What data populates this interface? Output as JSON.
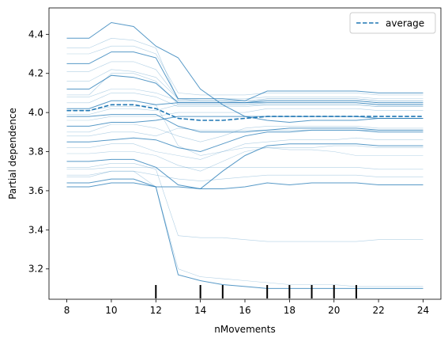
{
  "chart_data": {
    "type": "line",
    "title": "",
    "xlabel": "nMovements",
    "ylabel": "Partial dependence",
    "xlim": [
      7.2,
      24.8
    ],
    "ylim": [
      3.045,
      4.535
    ],
    "xticks": [
      8,
      10,
      12,
      14,
      16,
      18,
      20,
      22,
      24
    ],
    "yticks": [
      3.2,
      3.4,
      3.6,
      3.8,
      4.0,
      4.2,
      4.4
    ],
    "xtick_labels": [
      "8",
      "10",
      "12",
      "14",
      "16",
      "18",
      "20",
      "22",
      "24"
    ],
    "ytick_labels": [
      "3.2",
      "3.4",
      "3.6",
      "3.8",
      "4.0",
      "4.2",
      "4.4"
    ],
    "grid": false,
    "legend": {
      "position": "upper right",
      "entries": [
        {
          "label": "average",
          "style": "dashed"
        }
      ]
    },
    "color": "#1f77b4",
    "x": [
      8,
      9,
      10,
      11,
      12,
      13,
      14,
      15,
      16,
      17,
      18,
      19,
      20,
      21,
      22,
      23,
      24
    ],
    "rug_x": [
      12,
      14,
      15,
      17,
      18,
      19,
      20,
      21
    ],
    "series": [
      {
        "role": "individual",
        "values": [
          4.38,
          4.38,
          4.46,
          4.44,
          4.34,
          4.28,
          4.12,
          4.04,
          3.98,
          3.96,
          3.95,
          3.96,
          3.96,
          3.96,
          3.97,
          3.97,
          3.97
        ]
      },
      {
        "role": "individual",
        "values": [
          4.33,
          4.33,
          4.38,
          4.37,
          4.33,
          4.06,
          4.06,
          4.06,
          4.05,
          4.07,
          4.07,
          4.07,
          4.07,
          4.07,
          4.06,
          4.06,
          4.06
        ]
      },
      {
        "role": "individual",
        "values": [
          4.3,
          4.3,
          4.34,
          4.34,
          4.3,
          4.1,
          4.09,
          4.09,
          4.09,
          4.1,
          4.1,
          4.1,
          4.1,
          4.1,
          4.09,
          4.09,
          4.09
        ]
      },
      {
        "role": "individual",
        "values": [
          4.25,
          4.25,
          4.31,
          4.31,
          4.28,
          4.07,
          4.07,
          4.07,
          4.06,
          4.11,
          4.11,
          4.11,
          4.11,
          4.11,
          4.1,
          4.1,
          4.1
        ]
      },
      {
        "role": "individual",
        "values": [
          4.21,
          4.21,
          4.26,
          4.26,
          4.22,
          4.07,
          4.07,
          4.07,
          4.07,
          4.08,
          4.08,
          4.08,
          4.08,
          4.08,
          4.07,
          4.07,
          4.07
        ]
      },
      {
        "role": "individual",
        "values": [
          4.16,
          4.16,
          4.22,
          4.21,
          4.18,
          4.07,
          4.06,
          4.06,
          4.06,
          4.07,
          4.07,
          4.07,
          4.07,
          4.07,
          4.06,
          4.06,
          4.06
        ]
      },
      {
        "role": "individual",
        "values": [
          4.12,
          4.12,
          4.19,
          4.18,
          4.15,
          4.05,
          4.05,
          4.05,
          4.05,
          4.06,
          4.06,
          4.06,
          4.06,
          4.06,
          4.05,
          4.05,
          4.05
        ]
      },
      {
        "role": "individual",
        "values": [
          4.08,
          4.08,
          4.12,
          4.12,
          4.1,
          4.06,
          4.06,
          4.06,
          4.06,
          4.06,
          4.06,
          4.06,
          4.06,
          4.06,
          4.05,
          4.05,
          4.05
        ]
      },
      {
        "role": "individual",
        "values": [
          4.05,
          4.05,
          4.1,
          4.1,
          4.08,
          4.03,
          4.03,
          4.03,
          4.03,
          4.04,
          4.04,
          4.04,
          4.04,
          4.04,
          4.03,
          4.03,
          4.03
        ]
      },
      {
        "role": "individual",
        "values": [
          4.02,
          4.02,
          4.06,
          4.06,
          4.04,
          4.05,
          4.05,
          4.05,
          4.05,
          4.05,
          4.05,
          4.05,
          4.05,
          4.05,
          4.04,
          4.04,
          4.04
        ]
      },
      {
        "role": "individual",
        "values": [
          3.99,
          3.99,
          4.02,
          4.02,
          4.01,
          4.04,
          4.04,
          4.04,
          4.04,
          4.04,
          4.04,
          4.04,
          4.04,
          4.04,
          4.03,
          4.03,
          4.03
        ]
      },
      {
        "role": "individual",
        "values": [
          3.96,
          3.96,
          3.98,
          3.98,
          3.98,
          4.0,
          4.0,
          4.0,
          4.0,
          4.02,
          4.02,
          4.02,
          4.02,
          4.02,
          4.01,
          4.01,
          4.01
        ]
      },
      {
        "role": "individual",
        "values": [
          3.93,
          3.93,
          3.95,
          3.95,
          3.96,
          3.98,
          3.98,
          3.98,
          3.98,
          3.98,
          3.98,
          3.98,
          3.98,
          3.98,
          3.97,
          3.97,
          3.97
        ]
      },
      {
        "role": "individual",
        "values": [
          3.9,
          3.9,
          3.94,
          3.94,
          3.92,
          3.88,
          3.85,
          3.88,
          3.92,
          3.93,
          3.93,
          3.93,
          3.93,
          3.93,
          3.92,
          3.92,
          3.92
        ]
      },
      {
        "role": "individual",
        "values": [
          3.88,
          3.88,
          3.9,
          3.9,
          3.88,
          3.92,
          3.91,
          3.91,
          3.91,
          3.91,
          3.91,
          3.91,
          3.91,
          3.91,
          3.91,
          3.91,
          3.91
        ]
      },
      {
        "role": "individual",
        "values": [
          3.85,
          3.85,
          3.86,
          3.87,
          3.86,
          3.82,
          3.8,
          3.84,
          3.88,
          3.9,
          3.9,
          3.91,
          3.91,
          3.91,
          3.9,
          3.9,
          3.9
        ]
      },
      {
        "role": "individual",
        "values": [
          3.82,
          3.82,
          3.84,
          3.84,
          3.8,
          3.78,
          3.76,
          3.8,
          3.82,
          3.82,
          3.82,
          3.82,
          3.83,
          3.83,
          3.82,
          3.82,
          3.82
        ]
      },
      {
        "role": "individual",
        "values": [
          3.79,
          3.79,
          3.8,
          3.8,
          3.78,
          3.73,
          3.7,
          3.75,
          3.8,
          3.82,
          3.81,
          3.81,
          3.8,
          3.78,
          3.78,
          3.78,
          3.78
        ]
      },
      {
        "role": "individual",
        "values": [
          3.75,
          3.75,
          3.76,
          3.76,
          3.72,
          3.63,
          3.61,
          3.7,
          3.78,
          3.83,
          3.84,
          3.84,
          3.84,
          3.84,
          3.83,
          3.83,
          3.83
        ]
      },
      {
        "role": "individual",
        "values": [
          3.71,
          3.71,
          3.72,
          3.72,
          3.72,
          3.72,
          3.72,
          3.72,
          3.72,
          3.72,
          3.72,
          3.72,
          3.72,
          3.72,
          3.71,
          3.71,
          3.71
        ]
      },
      {
        "role": "individual",
        "values": [
          3.67,
          3.67,
          3.7,
          3.7,
          3.68,
          3.66,
          3.65,
          3.66,
          3.67,
          3.68,
          3.68,
          3.68,
          3.68,
          3.68,
          3.67,
          3.67,
          3.67
        ]
      },
      {
        "role": "individual",
        "values": [
          3.62,
          3.62,
          3.64,
          3.64,
          3.62,
          3.62,
          3.61,
          3.61,
          3.62,
          3.64,
          3.63,
          3.64,
          3.64,
          3.64,
          3.63,
          3.63,
          3.63
        ]
      },
      {
        "role": "individual",
        "values": [
          3.72,
          3.72,
          3.74,
          3.74,
          3.71,
          3.37,
          3.36,
          3.36,
          3.35,
          3.34,
          3.34,
          3.34,
          3.34,
          3.34,
          3.35,
          3.35,
          3.35
        ]
      },
      {
        "role": "individual",
        "values": [
          3.68,
          3.68,
          3.7,
          3.7,
          3.62,
          3.2,
          3.16,
          3.15,
          3.14,
          3.13,
          3.12,
          3.12,
          3.12,
          3.11,
          3.11,
          3.11,
          3.11
        ]
      },
      {
        "role": "individual",
        "values": [
          3.64,
          3.64,
          3.66,
          3.66,
          3.62,
          3.17,
          3.14,
          3.12,
          3.11,
          3.1,
          3.1,
          3.1,
          3.1,
          3.1,
          3.1,
          3.1,
          3.1
        ]
      },
      {
        "role": "individual",
        "values": [
          4.09,
          4.09,
          4.2,
          4.2,
          4.16,
          4.04,
          4.04,
          4.04,
          4.04,
          4.05,
          4.05,
          4.05,
          4.05,
          4.05,
          4.04,
          4.04,
          4.04
        ]
      },
      {
        "role": "individual",
        "values": [
          4.01,
          4.01,
          4.03,
          4.03,
          4.04,
          3.83,
          3.78,
          3.8,
          3.84,
          3.85,
          3.86,
          3.86,
          3.86,
          3.87,
          3.86,
          3.86,
          3.86
        ]
      },
      {
        "role": "individual",
        "values": [
          3.98,
          3.98,
          3.99,
          3.99,
          3.99,
          3.93,
          3.9,
          3.9,
          3.9,
          3.91,
          3.92,
          3.92,
          3.92,
          3.92,
          3.91,
          3.91,
          3.91
        ]
      },
      {
        "role": "average",
        "name": "average",
        "values": [
          4.01,
          4.01,
          4.04,
          4.04,
          4.02,
          3.97,
          3.96,
          3.96,
          3.97,
          3.98,
          3.98,
          3.98,
          3.98,
          3.98,
          3.98,
          3.98,
          3.98
        ]
      }
    ]
  }
}
